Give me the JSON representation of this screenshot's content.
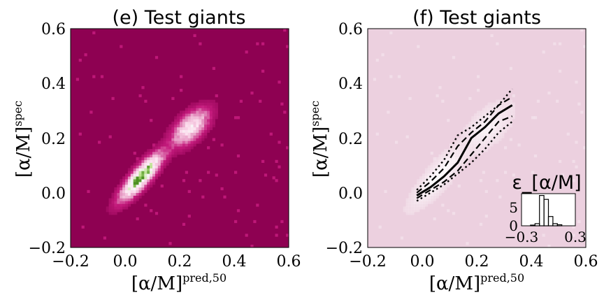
{
  "panels": [
    {
      "title": "(e) Test giants",
      "xlabel": "[α/M]",
      "xlabel_sup": "pred,50",
      "ylabel": "[α/M]",
      "ylabel_sup": "spec",
      "ticks": [
        "−0.2",
        "0.0",
        "0.2",
        "0.4",
        "0.6"
      ]
    },
    {
      "title": "(f) Test giants",
      "xlabel": "[α/M]",
      "xlabel_sup": "pred,50",
      "ylabel": "[α/M]",
      "ylabel_sup": "spec",
      "ticks": [
        "−0.2",
        "0.0",
        "0.2",
        "0.4",
        "0.6"
      ],
      "inset": {
        "title": "ε_[α/M]",
        "xticks": [
          "−0.3",
          "0.3"
        ],
        "yticks": [
          "0",
          "5"
        ]
      }
    }
  ],
  "colors": {
    "background_e": "#8e0152",
    "background_f": "#ecd0df",
    "density_high": "#4d9221",
    "lines": "#000000"
  },
  "chart_data": [
    {
      "type": "heatmap",
      "title": "(e) Test giants",
      "xlabel": "[α/M]^pred,50",
      "ylabel": "[α/M]^spec",
      "xlim": [
        -0.2,
        0.6
      ],
      "ylim": [
        -0.2,
        0.6
      ],
      "colormap": "PiYG",
      "clusters": [
        {
          "x": 0.06,
          "y": 0.06,
          "sx": 0.045,
          "sy": 0.05,
          "rho": 0.85,
          "weight": 1.0
        },
        {
          "x": 0.24,
          "y": 0.24,
          "sx": 0.04,
          "sy": 0.04,
          "rho": 0.6,
          "weight": 0.55
        }
      ]
    },
    {
      "type": "line",
      "title": "(f) Test giants",
      "xlabel": "[α/M]^pred,50",
      "ylabel": "[α/M]^spec",
      "xlim": [
        -0.2,
        0.6
      ],
      "ylim": [
        -0.2,
        0.6
      ],
      "series": [
        {
          "style": "solid",
          "x": [
            -0.02,
            0.03,
            0.08,
            0.13,
            0.18,
            0.23,
            0.28,
            0.33
          ],
          "y": [
            -0.01,
            0.02,
            0.06,
            0.11,
            0.2,
            0.24,
            0.29,
            0.32
          ]
        },
        {
          "style": "dashed",
          "x": [
            -0.02,
            0.03,
            0.08,
            0.13,
            0.18,
            0.23,
            0.28,
            0.33
          ],
          "y": [
            0.0,
            0.04,
            0.09,
            0.17,
            0.22,
            0.26,
            0.32,
            0.35
          ]
        },
        {
          "style": "dashed",
          "x": [
            -0.02,
            0.03,
            0.08,
            0.13,
            0.18,
            0.23,
            0.28,
            0.33
          ],
          "y": [
            -0.02,
            0.01,
            0.04,
            0.08,
            0.14,
            0.2,
            0.26,
            0.28
          ]
        },
        {
          "style": "dotted",
          "x": [
            -0.02,
            0.03,
            0.08,
            0.13,
            0.18,
            0.23,
            0.28,
            0.33
          ],
          "y": [
            0.01,
            0.06,
            0.12,
            0.21,
            0.24,
            0.28,
            0.32,
            0.38
          ]
        },
        {
          "style": "dotted",
          "x": [
            -0.02,
            0.03,
            0.08,
            0.13,
            0.18,
            0.23,
            0.28,
            0.33
          ],
          "y": [
            -0.03,
            0.0,
            0.03,
            0.07,
            0.11,
            0.16,
            0.22,
            0.26
          ]
        }
      ],
      "background_density_clusters": [
        {
          "x": 0.06,
          "y": 0.06,
          "sx": 0.045,
          "sy": 0.05,
          "rho": 0.85,
          "weight": 1.0
        },
        {
          "x": 0.24,
          "y": 0.24,
          "sx": 0.04,
          "sy": 0.04,
          "rho": 0.6,
          "weight": 0.55
        }
      ],
      "inset": {
        "type": "bar",
        "title": "ε_[α/M]",
        "xlim": [
          -0.3,
          0.3
        ],
        "ylim": [
          0,
          9
        ],
        "bin_edges": [
          -0.3,
          -0.25,
          -0.2,
          -0.15,
          -0.1,
          -0.05,
          0.0,
          0.05,
          0.1,
          0.15,
          0.2,
          0.25,
          0.3
        ],
        "values": [
          0,
          0,
          0.2,
          0.6,
          8.5,
          7.4,
          2.6,
          0.6,
          0.3,
          0,
          0,
          0
        ],
        "ylim_label_ticks": [
          0,
          5
        ]
      }
    }
  ]
}
